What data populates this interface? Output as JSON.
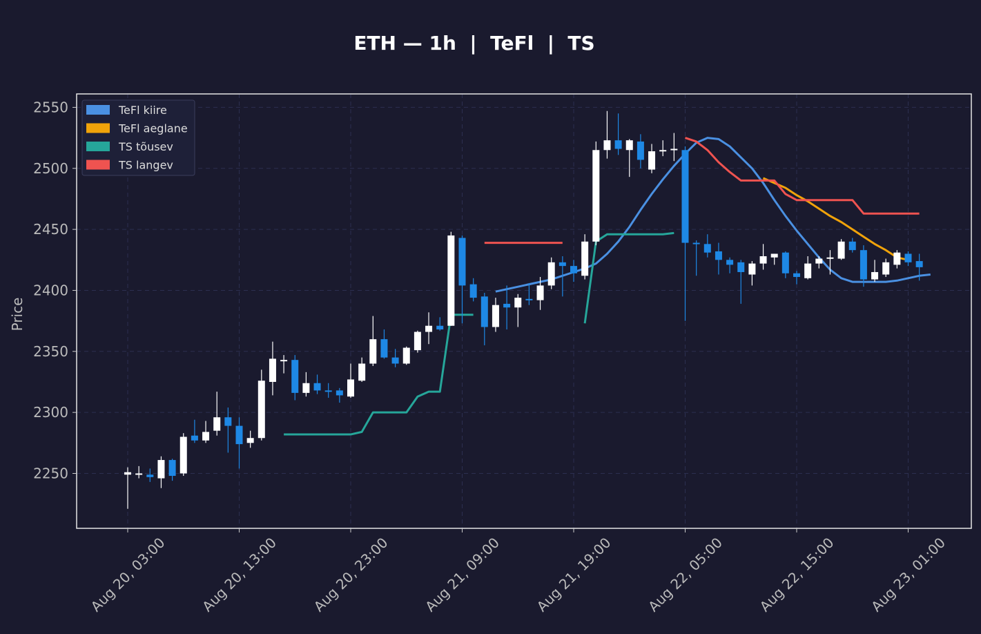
{
  "chart_data": {
    "type": "candlestick",
    "title": "ETH — 1h  |  TeFl  |  TS",
    "ylabel": "Price",
    "xlabel": "",
    "ylim": [
      2205,
      2561
    ],
    "yticks": [
      2250,
      2300,
      2350,
      2400,
      2450,
      2500,
      2550
    ],
    "xticks": [
      "Aug 20, 03:00",
      "Aug 20, 13:00",
      "Aug 20, 23:00",
      "Aug 21, 09:00",
      "Aug 21, 19:00",
      "Aug 22, 05:00",
      "Aug 22, 15:00",
      "Aug 23, 01:00"
    ],
    "x_start": "Aug 20, 03:00",
    "x_end": "Aug 23, 01:00",
    "grid": true,
    "legend_position": "top-left",
    "colors": {
      "background": "#1a1a2e",
      "text": "#ffffff",
      "axis_text": "#bbbbbb",
      "grid": "#2c2f50",
      "up_candle": "#ffffff",
      "down_candle": "#1e88e5",
      "tefl_fast": "#4a90e2",
      "tefl_slow": "#f0a30a",
      "ts_up": "#26a69a",
      "ts_down": "#ef5350"
    },
    "legend": [
      {
        "label": "TeFl kiire",
        "color": "#4a90e2"
      },
      {
        "label": "TeFl aeglane",
        "color": "#f0a30a"
      },
      {
        "label": "TS tõusev",
        "color": "#26a69a"
      },
      {
        "label": "TS langev",
        "color": "#ef5350"
      }
    ],
    "candles_ohlc": [
      [
        2249,
        2255,
        2221,
        2251
      ],
      [
        2249,
        2256,
        2246,
        2250
      ],
      [
        2249,
        2254,
        2243,
        2247
      ],
      [
        2246,
        2264,
        2238,
        2261
      ],
      [
        2261,
        2262,
        2244,
        2248
      ],
      [
        2250,
        2283,
        2248,
        2280
      ],
      [
        2281,
        2294,
        2275,
        2277
      ],
      [
        2277,
        2293,
        2275,
        2284
      ],
      [
        2285,
        2317,
        2281,
        2296
      ],
      [
        2296,
        2304,
        2267,
        2289
      ],
      [
        2289,
        2296,
        2254,
        2274
      ],
      [
        2275,
        2285,
        2271,
        2279
      ],
      [
        2279,
        2335,
        2277,
        2326
      ],
      [
        2325,
        2358,
        2314,
        2344
      ],
      [
        2343,
        2347,
        2332,
        2343
      ],
      [
        2343,
        2347,
        2310,
        2316
      ],
      [
        2316,
        2333,
        2313,
        2324
      ],
      [
        2324,
        2331,
        2315,
        2318
      ],
      [
        2318,
        2324,
        2312,
        2317
      ],
      [
        2318,
        2320,
        2308,
        2314
      ],
      [
        2313,
        2340,
        2312,
        2327
      ],
      [
        2326,
        2345,
        2325,
        2340
      ],
      [
        2340,
        2379,
        2338,
        2360
      ],
      [
        2360,
        2368,
        2344,
        2345
      ],
      [
        2345,
        2352,
        2337,
        2340
      ],
      [
        2340,
        2354,
        2339,
        2353
      ],
      [
        2351,
        2367,
        2349,
        2366
      ],
      [
        2366,
        2382,
        2356,
        2371
      ],
      [
        2371,
        2378,
        2367,
        2368
      ],
      [
        2371,
        2448,
        2371,
        2445
      ],
      [
        2443,
        2445,
        2373,
        2404
      ],
      [
        2405,
        2410,
        2391,
        2394
      ],
      [
        2395,
        2398,
        2355,
        2370
      ],
      [
        2370,
        2394,
        2366,
        2388
      ],
      [
        2389,
        2404,
        2368,
        2386
      ],
      [
        2386,
        2397,
        2370,
        2394
      ],
      [
        2393,
        2406,
        2388,
        2392
      ],
      [
        2392,
        2411,
        2384,
        2404
      ],
      [
        2404,
        2427,
        2401,
        2423
      ],
      [
        2423,
        2428,
        2395,
        2420
      ],
      [
        2420,
        2425,
        2407,
        2414
      ],
      [
        2412,
        2446,
        2409,
        2440
      ],
      [
        2440,
        2522,
        2437,
        2515
      ],
      [
        2515,
        2547,
        2508,
        2523
      ],
      [
        2523,
        2545,
        2511,
        2516
      ],
      [
        2515,
        2524,
        2493,
        2523
      ],
      [
        2522,
        2528,
        2500,
        2507
      ],
      [
        2499,
        2520,
        2496,
        2514
      ],
      [
        2514,
        2523,
        2510,
        2515
      ],
      [
        2515,
        2529,
        2506,
        2516
      ],
      [
        2515,
        2518,
        2375,
        2439
      ],
      [
        2439,
        2441,
        2412,
        2438
      ],
      [
        2438,
        2446,
        2427,
        2431
      ],
      [
        2432,
        2439,
        2413,
        2425
      ],
      [
        2425,
        2427,
        2414,
        2421
      ],
      [
        2423,
        2425,
        2389,
        2415
      ],
      [
        2413,
        2424,
        2404,
        2422
      ],
      [
        2422,
        2438,
        2417,
        2428
      ],
      [
        2427,
        2430,
        2421,
        2430
      ],
      [
        2431,
        2432,
        2410,
        2414
      ],
      [
        2414,
        2416,
        2405,
        2411
      ],
      [
        2410,
        2428,
        2409,
        2422
      ],
      [
        2422,
        2428,
        2418,
        2426
      ],
      [
        2426,
        2433,
        2413,
        2427
      ],
      [
        2426,
        2442,
        2425,
        2440
      ],
      [
        2440,
        2443,
        2431,
        2433
      ],
      [
        2433,
        2437,
        2403,
        2409
      ],
      [
        2409,
        2425,
        2407,
        2415
      ],
      [
        2413,
        2426,
        2411,
        2423
      ],
      [
        2421,
        2433,
        2418,
        2431
      ],
      [
        2430,
        2432,
        2420,
        2423
      ],
      [
        2424,
        2430,
        2408,
        2419
      ]
    ],
    "series": [
      {
        "name": "TeFl kiire",
        "start_index": 33,
        "values": [
          2399,
          2401,
          2403,
          2405,
          2407,
          2409,
          2412,
          2415,
          2418,
          2422,
          2430,
          2440,
          2452,
          2466,
          2479,
          2491,
          2502,
          2512,
          2521,
          2525,
          2524,
          2518,
          2509,
          2500,
          2488,
          2474,
          2461,
          2449,
          2438,
          2427,
          2417,
          2410,
          2407,
          2407,
          2407,
          2407,
          2408,
          2410,
          2412,
          2413
        ]
      },
      {
        "name": "TeFl aeglane",
        "start_index": 57,
        "values": [
          2492,
          2488,
          2484,
          2478,
          2473,
          2467,
          2461,
          2456,
          2450,
          2444,
          2438,
          2433,
          2427,
          2425
        ]
      },
      {
        "name": "TS tõusev",
        "segments": [
          {
            "start_index": 14,
            "values": [
              2282,
              2282,
              2282,
              2282,
              2282,
              2282,
              2282,
              2284,
              2300,
              2300,
              2300,
              2300,
              2313,
              2317,
              2317,
              2380,
              2380,
              2380
            ]
          },
          {
            "start_index": 41,
            "values": [
              2373,
              2440,
              2446,
              2446,
              2446,
              2446,
              2446,
              2446,
              2447
            ]
          }
        ]
      },
      {
        "name": "TS langev",
        "segments": [
          {
            "start_index": 32,
            "values": [
              2439,
              2439,
              2439,
              2439,
              2439,
              2439,
              2439,
              2439
            ]
          },
          {
            "start_index": 50,
            "values": [
              2525,
              2522,
              2515,
              2505,
              2497,
              2490,
              2490,
              2490,
              2490,
              2479,
              2474,
              2474,
              2474,
              2474,
              2474,
              2474,
              2463,
              2463,
              2463,
              2463,
              2463,
              2463
            ]
          }
        ]
      }
    ]
  }
}
